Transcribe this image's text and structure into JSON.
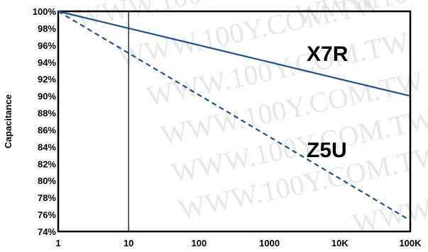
{
  "chart_data": {
    "type": "line",
    "x_scale": "log",
    "x": [
      1,
      100000
    ],
    "xlim": [
      1,
      100000
    ],
    "ylim": [
      74,
      100
    ],
    "x_tick_labels": [
      "1",
      "10",
      "100",
      "1000",
      "10K",
      "100K"
    ],
    "x_tick_values": [
      1,
      10,
      100,
      1000,
      10000,
      100000
    ],
    "y_tick_labels": [
      "100%",
      "98%",
      "96%",
      "94%",
      "92%",
      "90%",
      "88%",
      "86%",
      "84%",
      "82%",
      "80%",
      "78%",
      "76%",
      "74%"
    ],
    "y_tick_values": [
      100,
      98,
      96,
      94,
      92,
      90,
      88,
      86,
      84,
      82,
      80,
      78,
      76,
      74
    ],
    "ylabel": "Capacitance",
    "xlabel": "",
    "grid": false,
    "vertical_reference_line_x": 10,
    "series": [
      {
        "name": "X7R",
        "values": [
          100,
          90
        ],
        "color": "#1f4e8c",
        "style": "solid"
      },
      {
        "name": "Z5U",
        "values": [
          100,
          75.3
        ],
        "color": "#1f4e8c",
        "style": "dashed"
      }
    ]
  },
  "watermark": {
    "text": "WWW.100Y.COM.TW"
  }
}
